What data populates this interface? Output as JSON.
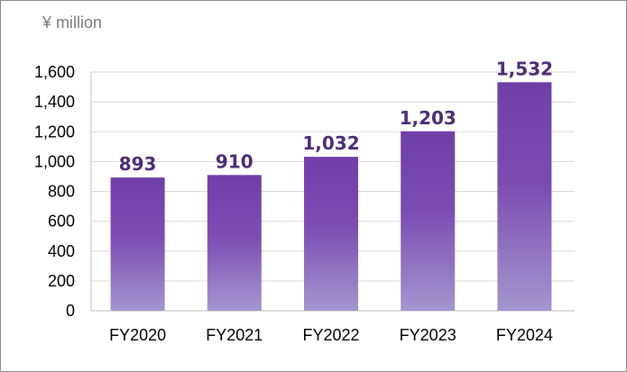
{
  "chart_data": {
    "type": "bar",
    "unit_label": "¥ million",
    "categories": [
      "FY2020",
      "FY2021",
      "FY2022",
      "FY2023",
      "FY2024"
    ],
    "values": [
      893,
      910,
      1032,
      1203,
      1532
    ],
    "value_labels": [
      "893",
      "910",
      "1,032",
      "1,203",
      "1,532"
    ],
    "yticks": [
      0,
      200,
      400,
      600,
      800,
      1000,
      1200,
      1400,
      1600
    ],
    "ytick_labels": [
      "0",
      "200",
      "400",
      "600",
      "800",
      "1,000",
      "1,200",
      "1,400",
      "1,600"
    ],
    "ylim": [
      0,
      1600
    ],
    "grid": true,
    "colors": {
      "bar_top": "#6f3fa8",
      "bar_mid": "#7b4db3",
      "bar_bottom": "#a496cf",
      "label": "#4b2c7a",
      "grid": "#d9d9d9",
      "axis": "#bfbfbf"
    }
  }
}
